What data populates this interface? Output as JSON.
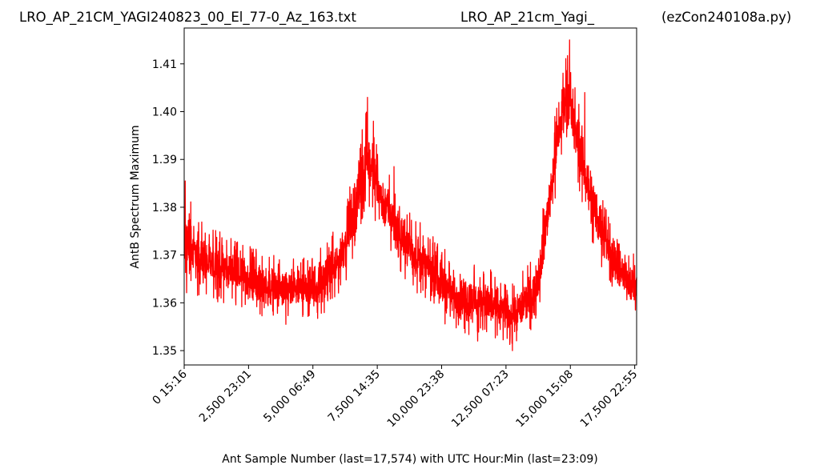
{
  "header": {
    "title_left": "LRO_AP_21CM_YAGI240823_00_El_77-0_Az_163.txt",
    "title_center": "LRO_AP_21cm_Yagi_",
    "title_right": "(ezCon240108a.py)"
  },
  "chart_data": {
    "type": "line",
    "xlabel": "Ant Sample Number (last=17,574) with UTC Hour:Min (last=23:09)",
    "ylabel": "AntB Spectrum Maximum",
    "xlim": [
      0,
      17574
    ],
    "ylim": [
      1.347,
      1.4175
    ],
    "grid": false,
    "x_ticks": [
      {
        "value": 0,
        "label": "0  15:16"
      },
      {
        "value": 2500,
        "label": "2,500  23:01"
      },
      {
        "value": 5000,
        "label": "5,000  06:49"
      },
      {
        "value": 7500,
        "label": "7,500  14:35"
      },
      {
        "value": 10000,
        "label": "10,000  23:38"
      },
      {
        "value": 12500,
        "label": "12,500  07:23"
      },
      {
        "value": 15000,
        "label": "15,000  15:08"
      },
      {
        "value": 17500,
        "label": "17,500  22:55"
      }
    ],
    "y_ticks": [
      {
        "value": 1.35,
        "label": "1.35"
      },
      {
        "value": 1.36,
        "label": "1.36"
      },
      {
        "value": 1.37,
        "label": "1.37"
      },
      {
        "value": 1.38,
        "label": "1.38"
      },
      {
        "value": 1.39,
        "label": "1.39"
      },
      {
        "value": 1.4,
        "label": "1.40"
      },
      {
        "value": 1.41,
        "label": "1.41"
      }
    ],
    "series": [
      {
        "color": "#ff0000",
        "envelope": [
          {
            "x": 0,
            "low": 1.359,
            "high": 1.381
          },
          {
            "x": 150,
            "low": 1.362,
            "high": 1.384
          },
          {
            "x": 400,
            "low": 1.363,
            "high": 1.378
          },
          {
            "x": 700,
            "low": 1.362,
            "high": 1.376
          },
          {
            "x": 1000,
            "low": 1.361,
            "high": 1.375
          },
          {
            "x": 1500,
            "low": 1.361,
            "high": 1.374
          },
          {
            "x": 2000,
            "low": 1.36,
            "high": 1.372
          },
          {
            "x": 2500,
            "low": 1.359,
            "high": 1.371
          },
          {
            "x": 3000,
            "low": 1.358,
            "high": 1.37
          },
          {
            "x": 3500,
            "low": 1.357,
            "high": 1.369
          },
          {
            "x": 4000,
            "low": 1.357,
            "high": 1.368
          },
          {
            "x": 4500,
            "low": 1.357,
            "high": 1.369
          },
          {
            "x": 5000,
            "low": 1.357,
            "high": 1.37
          },
          {
            "x": 5500,
            "low": 1.358,
            "high": 1.371
          },
          {
            "x": 6000,
            "low": 1.362,
            "high": 1.376
          },
          {
            "x": 6300,
            "low": 1.366,
            "high": 1.381
          },
          {
            "x": 6600,
            "low": 1.371,
            "high": 1.388
          },
          {
            "x": 6900,
            "low": 1.377,
            "high": 1.395
          },
          {
            "x": 7100,
            "low": 1.383,
            "high": 1.4
          },
          {
            "x": 7300,
            "low": 1.379,
            "high": 1.396
          },
          {
            "x": 7600,
            "low": 1.375,
            "high": 1.39
          },
          {
            "x": 8000,
            "low": 1.371,
            "high": 1.386
          },
          {
            "x": 8500,
            "low": 1.366,
            "high": 1.38
          },
          {
            "x": 9000,
            "low": 1.363,
            "high": 1.377
          },
          {
            "x": 9500,
            "low": 1.361,
            "high": 1.374
          },
          {
            "x": 10000,
            "low": 1.357,
            "high": 1.371
          },
          {
            "x": 10500,
            "low": 1.355,
            "high": 1.368
          },
          {
            "x": 11000,
            "low": 1.354,
            "high": 1.367
          },
          {
            "x": 11500,
            "low": 1.354,
            "high": 1.367
          },
          {
            "x": 12000,
            "low": 1.353,
            "high": 1.366
          },
          {
            "x": 12500,
            "low": 1.352,
            "high": 1.364
          },
          {
            "x": 13000,
            "low": 1.352,
            "high": 1.365
          },
          {
            "x": 13500,
            "low": 1.355,
            "high": 1.368
          },
          {
            "x": 13800,
            "low": 1.36,
            "high": 1.374
          },
          {
            "x": 14100,
            "low": 1.37,
            "high": 1.386
          },
          {
            "x": 14400,
            "low": 1.382,
            "high": 1.398
          },
          {
            "x": 14700,
            "low": 1.392,
            "high": 1.408
          },
          {
            "x": 14900,
            "low": 1.396,
            "high": 1.412
          },
          {
            "x": 15100,
            "low": 1.39,
            "high": 1.405
          },
          {
            "x": 15400,
            "low": 1.383,
            "high": 1.4
          },
          {
            "x": 15700,
            "low": 1.376,
            "high": 1.393
          },
          {
            "x": 16100,
            "low": 1.37,
            "high": 1.385
          },
          {
            "x": 16500,
            "low": 1.364,
            "high": 1.378
          },
          {
            "x": 17000,
            "low": 1.36,
            "high": 1.372
          },
          {
            "x": 17574,
            "low": 1.358,
            "high": 1.369
          }
        ],
        "spikes": [
          {
            "x": 40,
            "y": 1.3855
          },
          {
            "x": 7120,
            "y": 1.403
          },
          {
            "x": 7350,
            "y": 1.398
          },
          {
            "x": 8150,
            "y": 1.3885
          },
          {
            "x": 14970,
            "y": 1.415
          },
          {
            "x": 15180,
            "y": 1.405
          },
          {
            "x": 15560,
            "y": 1.404
          },
          {
            "x": 12750,
            "y": 1.35
          },
          {
            "x": 11400,
            "y": 1.352
          },
          {
            "x": 3950,
            "y": 1.3555
          }
        ]
      }
    ]
  }
}
